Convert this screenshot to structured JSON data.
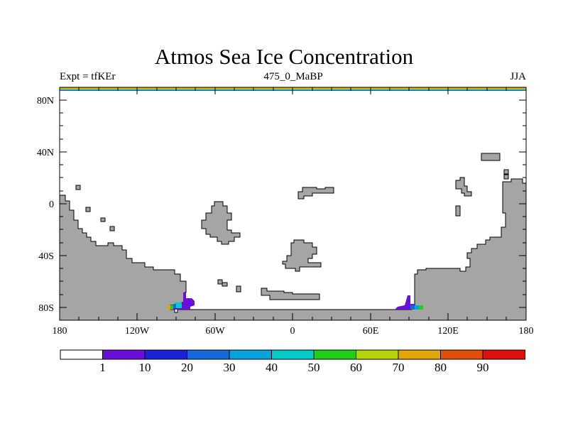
{
  "header": {
    "title": "Atmos Sea Ice Concentration",
    "left_label": "Expt = tfKEr",
    "center_label": "475_0_MaBP",
    "right_label": "JJA"
  },
  "map": {
    "y_axis_labels": [
      "80N",
      "40N",
      "0",
      "40S",
      "80S"
    ],
    "x_axis_labels": [
      "180",
      "120W",
      "60W",
      "0",
      "60E",
      "120E",
      "180"
    ],
    "land_color": "#a5a5a5",
    "ocean_color": "#ffffff"
  },
  "colorbar": {
    "labels": [
      "1",
      "10",
      "20",
      "30",
      "40",
      "50",
      "60",
      "70",
      "80",
      "90"
    ],
    "colors": [
      "#ffffff",
      "#6a0fd8",
      "#1a23d6",
      "#1569d9",
      "#07a3e0",
      "#05cbc8",
      "#21cf18",
      "#b7d40b",
      "#e2a506",
      "#e1500a",
      "#e0100e"
    ]
  }
}
